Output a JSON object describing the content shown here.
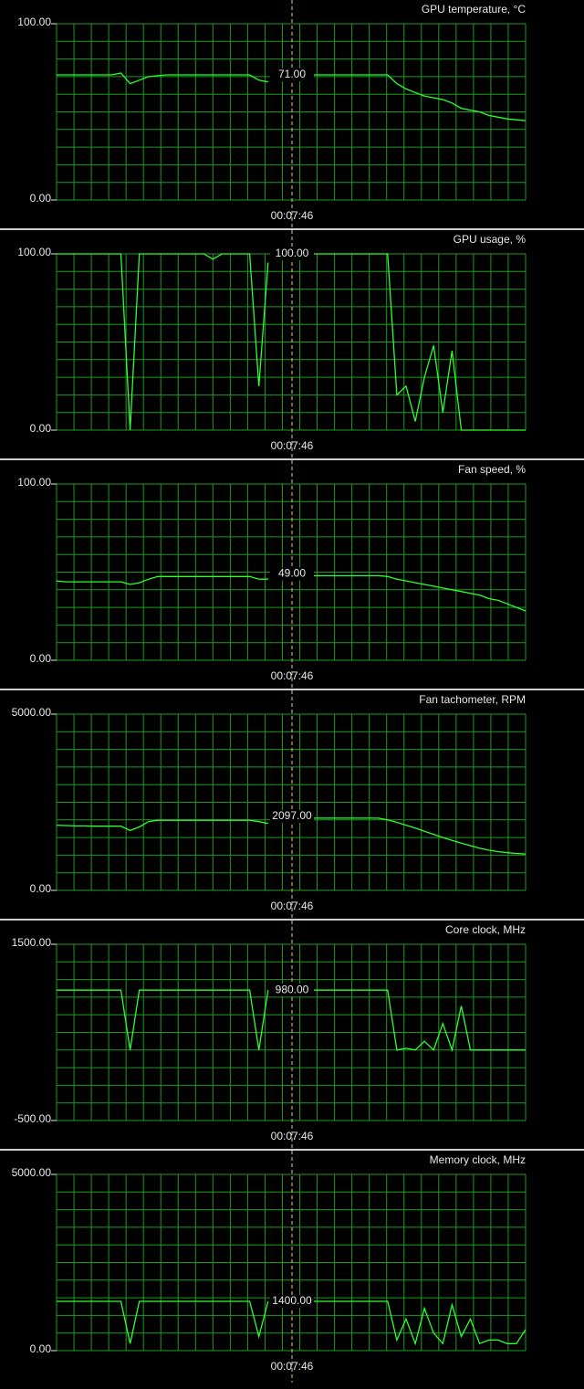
{
  "chart_data": [
    {
      "type": "line",
      "title": "GPU temperature, °C",
      "color": "#2eff2e",
      "grid": true,
      "ylim": [
        0,
        100
      ],
      "yticks": [
        {
          "value": 0,
          "label": "0.00"
        },
        {
          "value": 100,
          "label": "100.00"
        }
      ],
      "cursor_value": {
        "value": 71,
        "label": "71.00"
      },
      "cursor_time": "00:07:46",
      "values": [
        71,
        71,
        71,
        71,
        71,
        71,
        71,
        72,
        66,
        68,
        70,
        70.5,
        71,
        71,
        71,
        71,
        71,
        71,
        71,
        71,
        71,
        71,
        68,
        67,
        null,
        null,
        null,
        71,
        71,
        71,
        71,
        71,
        71,
        71,
        71,
        71,
        71,
        66,
        63,
        61,
        59,
        58,
        57,
        55,
        52,
        51,
        50,
        48,
        47,
        46,
        45.5,
        45
      ]
    },
    {
      "type": "line",
      "title": "GPU usage, %",
      "color": "#2eff2e",
      "grid": true,
      "ylim": [
        0,
        100
      ],
      "yticks": [
        {
          "value": 0,
          "label": "0.00"
        },
        {
          "value": 100,
          "label": "100.00"
        }
      ],
      "cursor_value": {
        "value": 100,
        "label": "100.00"
      },
      "cursor_time": "00:07:46",
      "values": [
        100,
        100,
        100,
        100,
        100,
        100,
        100,
        100,
        0,
        100,
        100,
        100,
        100,
        100,
        100,
        100,
        100,
        97,
        100,
        100,
        100,
        100,
        25,
        95,
        null,
        null,
        null,
        100,
        100,
        100,
        100,
        100,
        100,
        100,
        100,
        100,
        100,
        20,
        25,
        5,
        30,
        48,
        10,
        45,
        0,
        0,
        0,
        0,
        0,
        0,
        0,
        0
      ]
    },
    {
      "type": "line",
      "title": "Fan speed, %",
      "color": "#2eff2e",
      "grid": true,
      "ylim": [
        0,
        100
      ],
      "yticks": [
        {
          "value": 0,
          "label": "0.00"
        },
        {
          "value": 100,
          "label": "100.00"
        }
      ],
      "cursor_value": {
        "value": 49,
        "label": "49.00"
      },
      "cursor_time": "00:07:46",
      "values": [
        45,
        44.5,
        44.5,
        44.5,
        44.5,
        44.5,
        44.5,
        44.5,
        43,
        44,
        46,
        47.5,
        47.5,
        47.5,
        47.5,
        47.5,
        47.5,
        47.5,
        47.5,
        47.5,
        47.5,
        47.5,
        46,
        46,
        null,
        null,
        null,
        48,
        48,
        48,
        48,
        48,
        48,
        48,
        48,
        48,
        47.5,
        46,
        45,
        44,
        43,
        42,
        41,
        40,
        39,
        38,
        37,
        35,
        34,
        32,
        30,
        28
      ]
    },
    {
      "type": "line",
      "title": "Fan tachometer, RPM",
      "color": "#2eff2e",
      "grid": true,
      "ylim": [
        0,
        5000
      ],
      "yticks": [
        {
          "value": 0,
          "label": "0.00"
        },
        {
          "value": 5000,
          "label": "5000.00"
        }
      ],
      "cursor_value": {
        "value": 2097,
        "label": "2097.00"
      },
      "cursor_time": "00:07:46",
      "values": [
        1850,
        1840,
        1830,
        1830,
        1820,
        1820,
        1820,
        1820,
        1700,
        1800,
        1950,
        1990,
        1990,
        1990,
        1990,
        1990,
        1990,
        1990,
        1990,
        1990,
        1990,
        1990,
        1950,
        1900,
        null,
        null,
        null,
        2050,
        2050,
        2050,
        2050,
        2050,
        2050,
        2050,
        2050,
        2050,
        2000,
        1930,
        1850,
        1770,
        1680,
        1590,
        1500,
        1420,
        1340,
        1270,
        1200,
        1140,
        1100,
        1070,
        1050,
        1030
      ]
    },
    {
      "type": "line",
      "title": "Core clock, MHz",
      "color": "#2eff2e",
      "grid": true,
      "ylim": [
        -500,
        1500
      ],
      "yticks": [
        {
          "value": -500,
          "label": "-500.00"
        },
        {
          "value": 1500,
          "label": "1500.00"
        }
      ],
      "cursor_value": {
        "value": 980,
        "label": "980.00"
      },
      "cursor_time": "00:07:46",
      "values": [
        980,
        980,
        980,
        980,
        980,
        980,
        980,
        980,
        300,
        980,
        980,
        980,
        980,
        980,
        980,
        980,
        980,
        980,
        980,
        980,
        980,
        980,
        300,
        980,
        null,
        null,
        null,
        980,
        980,
        980,
        980,
        980,
        980,
        980,
        980,
        980,
        980,
        300,
        320,
        300,
        400,
        300,
        600,
        300,
        800,
        300,
        300,
        300,
        300,
        300,
        300,
        300
      ]
    },
    {
      "type": "line",
      "title": "Memory clock, MHz",
      "color": "#2eff2e",
      "grid": true,
      "ylim": [
        0,
        5000
      ],
      "yticks": [
        {
          "value": 0,
          "label": "0.00"
        },
        {
          "value": 5000,
          "label": "5000.00"
        }
      ],
      "cursor_value": {
        "value": 1400,
        "label": "1400.00"
      },
      "cursor_time": "00:07:46",
      "values": [
        1400,
        1400,
        1400,
        1400,
        1400,
        1400,
        1400,
        1400,
        200,
        1400,
        1400,
        1400,
        1400,
        1400,
        1400,
        1400,
        1400,
        1400,
        1400,
        1400,
        1400,
        1400,
        400,
        1400,
        null,
        null,
        null,
        1400,
        1400,
        1400,
        1400,
        1400,
        1400,
        1400,
        1400,
        1400,
        1400,
        300,
        900,
        200,
        1200,
        500,
        200,
        1300,
        400,
        900,
        200,
        300,
        300,
        200,
        200,
        600
      ]
    }
  ]
}
